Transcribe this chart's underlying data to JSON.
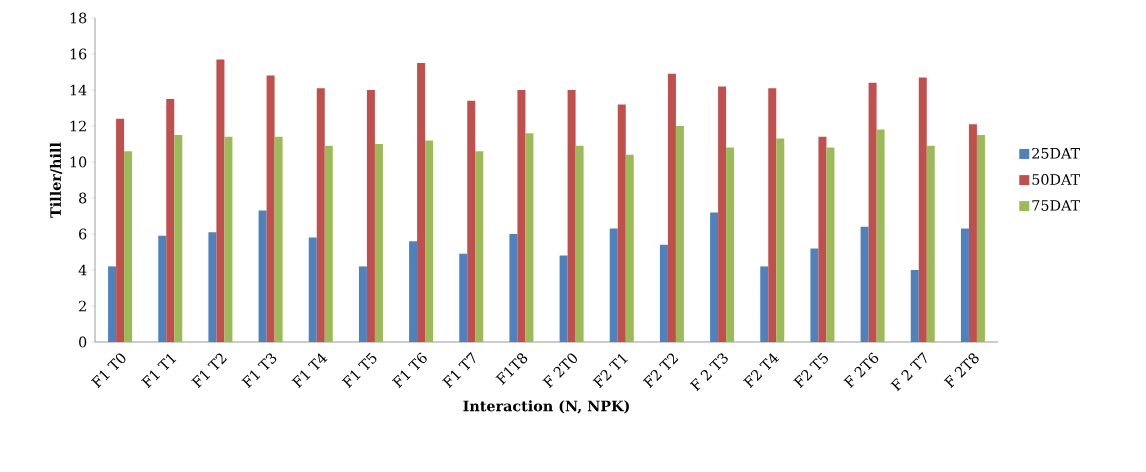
{
  "chart_data": {
    "type": "bar",
    "xlabel": "Interaction (N, NPK)",
    "ylabel": "Tiller/hill",
    "categories": [
      "F1 T0",
      "F1 T1",
      "F1 T2",
      "F1 T3",
      "F1 T4",
      "F1 T5",
      "F1 T6",
      "F1 T7",
      "F1T8",
      "F 2T0",
      "F2 T1",
      "F2 T2",
      "F 2 T3",
      "F2 T4",
      "F2 T5",
      "F 2T6",
      "F 2 T7",
      "F 2T8"
    ],
    "series": [
      {
        "name": "25DAT",
        "color": "#4f81bd",
        "values": [
          4.2,
          5.9,
          6.1,
          7.3,
          5.8,
          4.2,
          5.6,
          4.9,
          6.0,
          4.8,
          6.3,
          5.4,
          7.2,
          4.2,
          5.2,
          6.4,
          4.0,
          6.3
        ]
      },
      {
        "name": "50DAT",
        "color": "#c0504d",
        "values": [
          12.4,
          13.5,
          15.7,
          14.8,
          14.1,
          14.0,
          15.5,
          13.4,
          14.0,
          14.0,
          13.2,
          14.9,
          14.2,
          14.1,
          11.4,
          14.4,
          14.7,
          12.1
        ]
      },
      {
        "name": "75DAT",
        "color": "#9bbb59",
        "values": [
          10.6,
          11.5,
          11.4,
          11.4,
          10.9,
          11.0,
          11.2,
          10.6,
          11.6,
          10.9,
          10.4,
          12.0,
          10.8,
          11.3,
          10.8,
          11.8,
          10.9,
          11.5
        ]
      }
    ],
    "ylim": [
      0,
      18
    ],
    "yticks": [
      0,
      2,
      4,
      6,
      8,
      10,
      12,
      14,
      16,
      18
    ],
    "grid": false,
    "legend": "right"
  }
}
